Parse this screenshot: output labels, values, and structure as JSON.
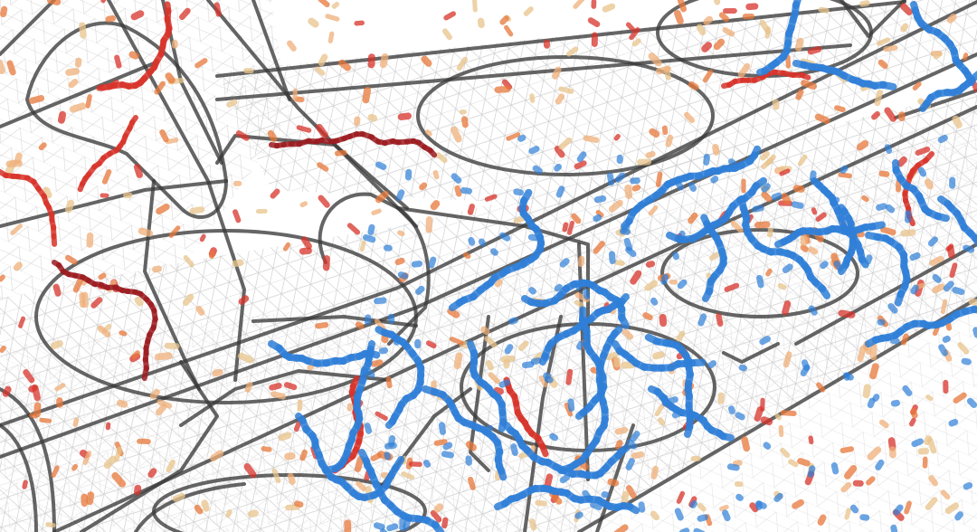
{
  "scene": {
    "subject": "wireframe-3d-render",
    "colors": {
      "background": "#ffffff",
      "mesh": "#cfcfcf",
      "outline": "#3a3a3a",
      "blue": "#2f7fd8",
      "red": "#d8332a",
      "dark_red": "#9c1c20",
      "orange": "#e8783a",
      "peach": "#f0b07a",
      "tan": "#e9c48c"
    }
  }
}
